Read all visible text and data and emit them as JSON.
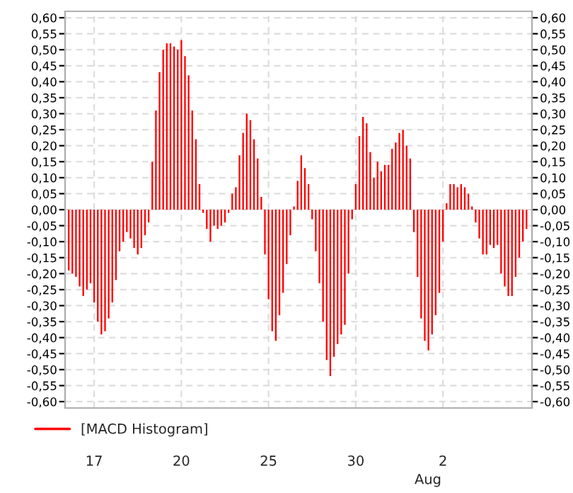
{
  "chart_data": {
    "type": "bar",
    "categories": [
      null,
      null,
      null,
      null,
      null,
      null,
      null,
      "17",
      null,
      null,
      null,
      null,
      null,
      null,
      null,
      null,
      null,
      null,
      null,
      null,
      null,
      null,
      null,
      null,
      null,
      null,
      null,
      null,
      null,
      null,
      null,
      "20",
      null,
      null,
      null,
      null,
      null,
      null,
      null,
      null,
      null,
      null,
      null,
      null,
      null,
      null,
      null,
      null,
      null,
      null,
      null,
      null,
      null,
      null,
      null,
      "25",
      null,
      null,
      null,
      null,
      null,
      null,
      null,
      null,
      null,
      null,
      null,
      null,
      null,
      null,
      null,
      null,
      null,
      null,
      null,
      null,
      null,
      null,
      null,
      "30",
      null,
      null,
      null,
      null,
      null,
      null,
      null,
      null,
      null,
      null,
      null,
      null,
      null,
      null,
      null,
      null,
      null,
      null,
      null,
      null,
      null,
      null,
      null,
      "2",
      null,
      null,
      null,
      null,
      null,
      null,
      null,
      null,
      null,
      null,
      null,
      null,
      null,
      null,
      null,
      null,
      null,
      null,
      null,
      null,
      null,
      null,
      null
    ],
    "series": [
      {
        "name": "[MACD Histogram]",
        "color": "#ff0000",
        "values": [
          -0.19,
          -0.2,
          -0.21,
          -0.24,
          -0.27,
          -0.25,
          -0.23,
          -0.29,
          -0.35,
          -0.39,
          -0.38,
          -0.34,
          -0.29,
          -0.22,
          -0.13,
          -0.1,
          -0.07,
          -0.09,
          -0.12,
          -0.14,
          -0.12,
          -0.08,
          -0.04,
          0.15,
          0.31,
          0.43,
          0.5,
          0.52,
          0.52,
          0.51,
          0.5,
          0.53,
          0.48,
          0.42,
          0.31,
          0.22,
          0.08,
          -0.01,
          -0.06,
          -0.1,
          -0.05,
          -0.06,
          -0.05,
          -0.04,
          -0.01,
          0.05,
          0.07,
          0.17,
          0.24,
          0.3,
          0.28,
          0.22,
          0.16,
          0.04,
          -0.14,
          -0.28,
          -0.38,
          -0.41,
          -0.33,
          -0.26,
          -0.17,
          -0.08,
          0.01,
          0.09,
          0.17,
          0.13,
          0.08,
          -0.03,
          -0.13,
          -0.23,
          -0.35,
          -0.47,
          -0.52,
          -0.46,
          -0.42,
          -0.39,
          -0.36,
          -0.2,
          -0.03,
          0.08,
          0.23,
          0.29,
          0.27,
          0.18,
          0.1,
          0.15,
          0.12,
          0.14,
          0.14,
          0.19,
          0.21,
          0.24,
          0.25,
          0.2,
          0.16,
          -0.07,
          -0.21,
          -0.34,
          -0.41,
          -0.44,
          -0.39,
          -0.33,
          -0.26,
          -0.1,
          0.02,
          0.08,
          0.08,
          0.07,
          0.08,
          0.07,
          0.05,
          0.01,
          -0.04,
          -0.09,
          -0.14,
          -0.14,
          -0.11,
          -0.12,
          -0.11,
          -0.2,
          -0.24,
          -0.27,
          -0.27,
          -0.21,
          -0.15,
          -0.1,
          -0.06
        ]
      }
    ],
    "ylim": [
      -0.62,
      0.62
    ],
    "yticks": [
      {
        "value": 0.6,
        "label": "0,60"
      },
      {
        "value": 0.55,
        "label": "0,55"
      },
      {
        "value": 0.5,
        "label": "0,50"
      },
      {
        "value": 0.45,
        "label": "0,45"
      },
      {
        "value": 0.4,
        "label": "0,40"
      },
      {
        "value": 0.35,
        "label": "0,35"
      },
      {
        "value": 0.3,
        "label": "0,30"
      },
      {
        "value": 0.25,
        "label": "0,25"
      },
      {
        "value": 0.2,
        "label": "0,20"
      },
      {
        "value": 0.15,
        "label": "0,15"
      },
      {
        "value": 0.1,
        "label": "0,10"
      },
      {
        "value": 0.05,
        "label": "0,05"
      },
      {
        "value": 0,
        "label": "0,00"
      },
      {
        "value": -0.05,
        "label": "-0,05"
      },
      {
        "value": -0.1,
        "label": "-0,10"
      },
      {
        "value": -0.15,
        "label": "-0,15"
      },
      {
        "value": -0.2,
        "label": "-0,20"
      },
      {
        "value": -0.25,
        "label": "-0,25"
      },
      {
        "value": -0.3,
        "label": "-0,30"
      },
      {
        "value": -0.35,
        "label": "-0,35"
      },
      {
        "value": -0.4,
        "label": "-0,40"
      },
      {
        "value": -0.45,
        "label": "-0,45"
      },
      {
        "value": -0.5,
        "label": "-0,50"
      },
      {
        "value": -0.55,
        "label": "-0,55"
      },
      {
        "value": -0.6,
        "label": "-0,60"
      }
    ],
    "y2lim": [
      -0.62,
      0.62
    ],
    "y2ticks": [
      {
        "value": 0.6,
        "label": "0,60"
      },
      {
        "value": 0.55,
        "label": "0,55"
      },
      {
        "value": 0.5,
        "label": "0,50"
      },
      {
        "value": 0.45,
        "label": "0,45"
      },
      {
        "value": 0.4,
        "label": "0,40"
      },
      {
        "value": 0.35,
        "label": "0,35"
      },
      {
        "value": 0.3,
        "label": "0,30"
      },
      {
        "value": 0.25,
        "label": "0,25"
      },
      {
        "value": 0.2,
        "label": "0,20"
      },
      {
        "value": 0.15,
        "label": "0,15"
      },
      {
        "value": 0.1,
        "label": "0,10"
      },
      {
        "value": 0.05,
        "label": "0,05"
      },
      {
        "value": 0,
        "label": "0,00"
      },
      {
        "value": -0.05,
        "label": "-0,05"
      },
      {
        "value": -0.1,
        "label": "-0,10"
      },
      {
        "value": -0.15,
        "label": "-0,15"
      },
      {
        "value": -0.2,
        "label": "-0,20"
      },
      {
        "value": -0.25,
        "label": "-0,25"
      },
      {
        "value": -0.3,
        "label": "-0,30"
      },
      {
        "value": -0.35,
        "label": "-0,35"
      },
      {
        "value": -0.4,
        "label": "-0,40"
      },
      {
        "value": -0.45,
        "label": "-0,45"
      },
      {
        "value": -0.5,
        "label": "-0,50"
      },
      {
        "value": -0.55,
        "label": "-0,55"
      },
      {
        "value": -0.6,
        "label": "-0,60"
      }
    ],
    "annotations": [
      "Aug"
    ],
    "grid": true,
    "legend": "bottom left"
  }
}
